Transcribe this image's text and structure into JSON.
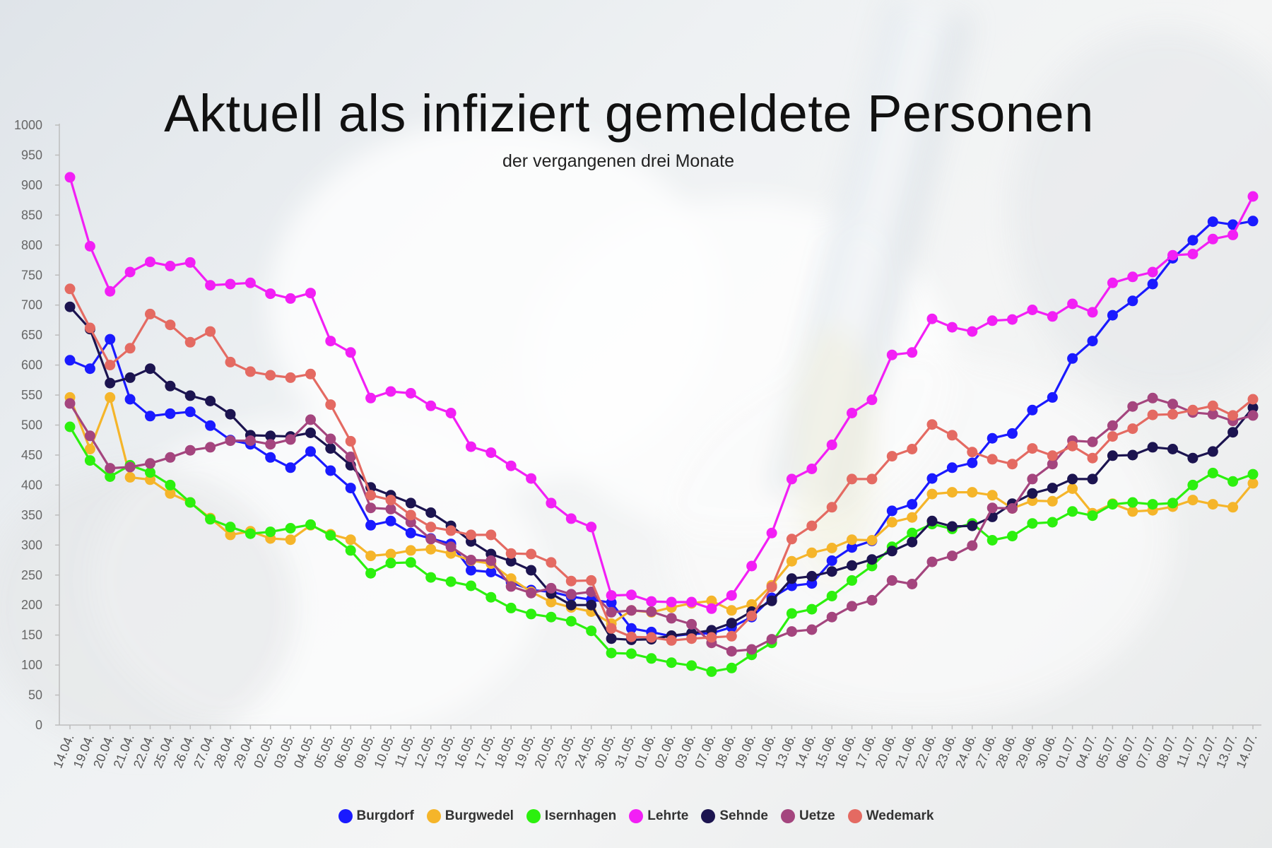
{
  "chart_data": {
    "type": "line",
    "title": "Aktuell als infiziert gemeldete Personen",
    "subtitle": "der vergangenen drei Monate",
    "xlabel": "",
    "ylabel": "",
    "ylim": [
      0,
      1000
    ],
    "yticks": [
      0,
      50,
      100,
      150,
      200,
      250,
      300,
      350,
      400,
      450,
      500,
      550,
      600,
      650,
      700,
      750,
      800,
      850,
      900,
      950,
      1000
    ],
    "grid": false,
    "legend_position": "bottom-center",
    "categories": [
      "14.04.",
      "19.04.",
      "20.04.",
      "21.04.",
      "22.04.",
      "25.04.",
      "26.04.",
      "27.04.",
      "28.04.",
      "29.04.",
      "02.05.",
      "03.05.",
      "04.05.",
      "05.05.",
      "06.05.",
      "09.05.",
      "10.05.",
      "11.05.",
      "12.05.",
      "13.05.",
      "16.05.",
      "17.05.",
      "18.05.",
      "19.05.",
      "20.05.",
      "23.05.",
      "24.05.",
      "30.05.",
      "31.05.",
      "01.06.",
      "02.06.",
      "03.06.",
      "07.06.",
      "08.06.",
      "09.06.",
      "10.06.",
      "13.06.",
      "14.06.",
      "15.06.",
      "16.06.",
      "17.06.",
      "20.06.",
      "21.06.",
      "22.06.",
      "23.06.",
      "24.06.",
      "27.06.",
      "28.06.",
      "29.06.",
      "30.06.",
      "01.07.",
      "04.07.",
      "05.07.",
      "06.07.",
      "07.07.",
      "08.07.",
      "11.07.",
      "12.07.",
      "13.07.",
      "14.07."
    ],
    "series": [
      {
        "name": "Burgdorf",
        "color": "#1a1aff",
        "values": [
          608,
          594,
          643,
          543,
          515,
          519,
          522,
          499,
          475,
          468,
          446,
          429,
          456,
          424,
          395,
          333,
          340,
          320,
          311,
          302,
          258,
          255,
          238,
          225,
          222,
          214,
          209,
          204,
          161,
          155,
          148,
          152,
          153,
          163,
          180,
          212,
          232,
          236,
          274,
          296,
          307,
          357,
          368,
          411,
          429,
          437,
          478,
          486,
          525,
          546,
          611,
          640,
          683,
          707,
          735,
          778,
          808,
          839,
          834,
          840
        ]
      },
      {
        "name": "Burgwedel",
        "color": "#f5b52a",
        "values": [
          546,
          460,
          546,
          413,
          409,
          386,
          371,
          345,
          317,
          323,
          311,
          309,
          333,
          318,
          309,
          282,
          285,
          291,
          293,
          286,
          274,
          269,
          244,
          222,
          205,
          196,
          189,
          169,
          191,
          188,
          196,
          203,
          207,
          191,
          201,
          233,
          273,
          287,
          295,
          309,
          308,
          338,
          346,
          385,
          388,
          388,
          383,
          361,
          374,
          373,
          394,
          353,
          369,
          356,
          358,
          364,
          375,
          368,
          363,
          403
        ]
      },
      {
        "name": "Isernhagen",
        "color": "#2cf00e",
        "values": [
          497,
          441,
          414,
          433,
          421,
          400,
          371,
          343,
          330,
          319,
          322,
          328,
          334,
          316,
          291,
          253,
          270,
          271,
          246,
          239,
          232,
          213,
          195,
          185,
          180,
          173,
          157,
          120,
          119,
          111,
          104,
          99,
          89,
          95,
          117,
          137,
          186,
          193,
          215,
          241,
          265,
          297,
          320,
          335,
          327,
          336,
          308,
          315,
          336,
          338,
          356,
          349,
          368,
          371,
          368,
          370,
          400,
          420,
          406,
          418
        ]
      },
      {
        "name": "Lehrte",
        "color": "#f21ff5",
        "values": [
          913,
          798,
          723,
          755,
          772,
          765,
          771,
          733,
          735,
          737,
          719,
          711,
          720,
          640,
          621,
          545,
          556,
          553,
          532,
          520,
          464,
          454,
          432,
          411,
          370,
          344,
          330,
          216,
          217,
          206,
          205,
          205,
          194,
          216,
          265,
          320,
          410,
          427,
          467,
          520,
          542,
          617,
          621,
          677,
          663,
          656,
          674,
          676,
          692,
          681,
          702,
          688,
          737,
          747,
          755,
          783,
          785,
          810,
          817,
          881
        ]
      },
      {
        "name": "Sehnde",
        "color": "#1c1450",
        "values": [
          697,
          660,
          570,
          579,
          594,
          565,
          549,
          540,
          518,
          483,
          482,
          481,
          487,
          461,
          433,
          396,
          383,
          370,
          354,
          332,
          306,
          285,
          273,
          258,
          219,
          200,
          200,
          144,
          142,
          143,
          149,
          153,
          158,
          170,
          189,
          207,
          244,
          248,
          256,
          266,
          276,
          290,
          305,
          340,
          331,
          332,
          347,
          369,
          386,
          395,
          410,
          410,
          449,
          450,
          463,
          460,
          445,
          456,
          488,
          529
        ]
      },
      {
        "name": "Uetze",
        "color": "#a4457e",
        "values": [
          536,
          482,
          428,
          430,
          436,
          446,
          458,
          463,
          474,
          474,
          468,
          476,
          509,
          477,
          447,
          362,
          360,
          338,
          310,
          297,
          275,
          274,
          231,
          220,
          228,
          218,
          222,
          188,
          191,
          189,
          178,
          168,
          137,
          123,
          126,
          143,
          156,
          159,
          180,
          198,
          208,
          241,
          235,
          272,
          282,
          299,
          362,
          361,
          410,
          435,
          474,
          472,
          499,
          531,
          545,
          535,
          521,
          518,
          507,
          516
        ]
      },
      {
        "name": "Wedemark",
        "color": "#e46a62",
        "values": [
          727,
          662,
          600,
          628,
          685,
          667,
          638,
          656,
          605,
          589,
          583,
          579,
          585,
          534,
          473,
          383,
          375,
          350,
          330,
          324,
          317,
          317,
          286,
          285,
          271,
          240,
          241,
          161,
          147,
          146,
          141,
          144,
          146,
          148,
          182,
          230,
          310,
          332,
          363,
          410,
          410,
          448,
          460,
          501,
          483,
          455,
          443,
          435,
          461,
          449,
          465,
          445,
          481,
          494,
          517,
          518,
          525,
          532,
          516,
          543
        ]
      }
    ]
  }
}
